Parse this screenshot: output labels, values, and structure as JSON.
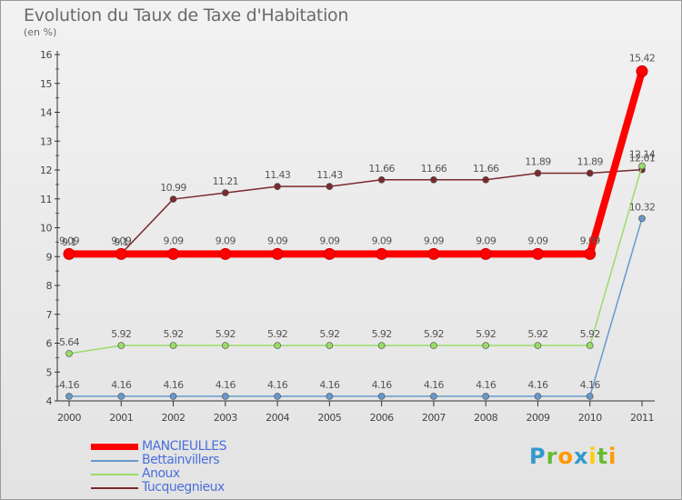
{
  "header": {
    "title": "Evolution du Taux de Taxe d'Habitation",
    "subtitle": "(en %)"
  },
  "chart_data": {
    "type": "line",
    "title": "Evolution du Taux de Taxe d'Habitation",
    "ylabel": "(en %)",
    "xlabel": "",
    "x": [
      "2000",
      "2001",
      "2002",
      "2003",
      "2004",
      "2005",
      "2006",
      "2007",
      "2008",
      "2009",
      "2010",
      "2011"
    ],
    "ylim": [
      4,
      16
    ],
    "yticks": [
      "4",
      "5",
      "6",
      "7",
      "8",
      "9",
      "10",
      "11",
      "12",
      "13",
      "14",
      "15",
      "16"
    ],
    "grid": false,
    "legend_position": "bottom-left",
    "series": [
      {
        "name": "MANCIEULLES",
        "color": "#ff0000",
        "values": [
          9.09,
          9.09,
          9.09,
          9.09,
          9.09,
          9.09,
          9.09,
          9.09,
          9.09,
          9.09,
          9.09,
          15.42
        ],
        "labels": [
          "9.09",
          "9.09",
          "9.09",
          "9.09",
          "9.09",
          "9.09",
          "9.09",
          "9.09",
          "9.09",
          "9.09",
          "9.09",
          "15.42"
        ]
      },
      {
        "name": "Bettainvillers",
        "color": "#6699cc",
        "values": [
          4.16,
          4.16,
          4.16,
          4.16,
          4.16,
          4.16,
          4.16,
          4.16,
          4.16,
          4.16,
          4.16,
          10.32
        ],
        "labels": [
          "4.16",
          "4.16",
          "4.16",
          "4.16",
          "4.16",
          "4.16",
          "4.16",
          "4.16",
          "4.16",
          "4.16",
          "4.16",
          "10.32"
        ]
      },
      {
        "name": "Anoux",
        "color": "#99dd66",
        "values": [
          5.64,
          5.92,
          5.92,
          5.92,
          5.92,
          5.92,
          5.92,
          5.92,
          5.92,
          5.92,
          5.92,
          12.14
        ],
        "labels": [
          "5.64",
          "5.92",
          "5.92",
          "5.92",
          "5.92",
          "5.92",
          "5.92",
          "5.92",
          "5.92",
          "5.92",
          "5.92",
          "12.14"
        ]
      },
      {
        "name": "Tucquegnieux",
        "color": "#7a2a2a",
        "values": [
          9.1,
          9.1,
          10.99,
          11.21,
          11.43,
          11.43,
          11.66,
          11.66,
          11.66,
          11.89,
          11.89,
          12.01
        ],
        "labels": [
          "9.1",
          "9.1",
          "10.99",
          "11.21",
          "11.43",
          "11.43",
          "11.66",
          "11.66",
          "11.66",
          "11.89",
          "11.89",
          "12.01"
        ]
      }
    ]
  },
  "branding": {
    "logo_letters": [
      "P",
      "r",
      "o",
      "x",
      "i",
      "t",
      "i"
    ],
    "logo_colors": [
      "#3399cc",
      "#66bb33",
      "#ff9900",
      "#3399cc",
      "#ffcc00",
      "#66bb33",
      "#ff9900"
    ]
  }
}
